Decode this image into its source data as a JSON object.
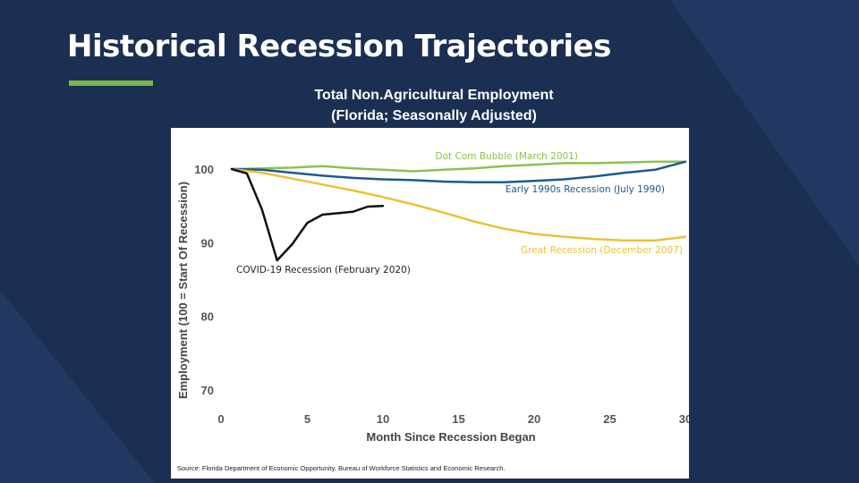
{
  "slide": {
    "title": "Historical Recession Trajectories",
    "accent_color": "#7ab648",
    "background_color": "#1b2f52"
  },
  "chart_data": {
    "type": "line",
    "title_line1": "Total Non.Agricultural Employment",
    "title_line2": "(Florida; Seasonally Adjusted)",
    "xlabel": "Month Since Recession Began",
    "ylabel": "Employment (100 = Start Of Recession)",
    "xlim": [
      0,
      30
    ],
    "ylim": [
      70,
      100
    ],
    "xticks": [
      0,
      5,
      10,
      15,
      20,
      25,
      30
    ],
    "yticks": [
      70,
      80,
      90,
      100
    ],
    "grid": false,
    "source": "Source: Florida Department of Economic Opportunity, Bureau of Workforce Statistics and Economic Research.",
    "series": [
      {
        "name": "Dot Com Bubble (March 2001)",
        "color": "#8dc152",
        "x": [
          0,
          2,
          4,
          6,
          8,
          10,
          12,
          14,
          16,
          18,
          20,
          22,
          24,
          26,
          28,
          30
        ],
        "y": [
          100,
          100.1,
          100.2,
          100.4,
          100.1,
          99.9,
          99.7,
          99.9,
          100.1,
          100.4,
          100.6,
          100.8,
          100.8,
          100.9,
          101.0,
          101.0
        ]
      },
      {
        "name": "Early 1990s Recession (July 1990)",
        "color": "#1b5a8e",
        "x": [
          0,
          2,
          4,
          6,
          8,
          10,
          12,
          14,
          16,
          18,
          20,
          22,
          24,
          26,
          28,
          30
        ],
        "y": [
          100,
          99.9,
          99.5,
          99.1,
          98.8,
          98.6,
          98.5,
          98.3,
          98.2,
          98.2,
          98.4,
          98.6,
          99.0,
          99.5,
          99.9,
          101.0
        ]
      },
      {
        "name": "Great Recession (December 2007)",
        "color": "#e8c23a",
        "x": [
          0,
          2,
          4,
          6,
          8,
          10,
          12,
          14,
          16,
          18,
          20,
          22,
          24,
          26,
          28,
          30
        ],
        "y": [
          100,
          99.5,
          98.7,
          97.9,
          97.1,
          96.2,
          95.2,
          94.1,
          92.9,
          91.9,
          91.2,
          90.8,
          90.5,
          90.3,
          90.3,
          90.8
        ]
      },
      {
        "name": "COVID-19 Recession (February 2020)",
        "color": "#111111",
        "x": [
          0,
          1,
          2,
          3,
          4,
          5,
          6,
          7,
          8,
          9,
          10
        ],
        "y": [
          100,
          99.4,
          94.5,
          87.6,
          89.8,
          92.7,
          93.8,
          94.0,
          94.2,
          94.9,
          95.0
        ]
      }
    ]
  }
}
